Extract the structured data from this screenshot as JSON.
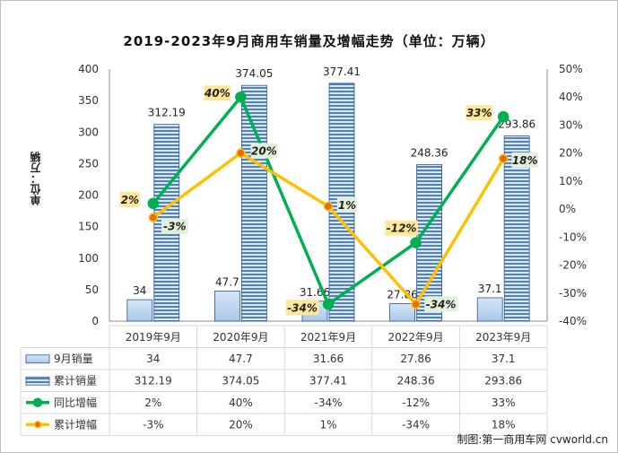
{
  "chart_data": {
    "type": "bar",
    "title": "2019-2023年9月商用车销量及增幅走势（单位：万辆）",
    "ylabel": "单位：万辆",
    "categories": [
      "2019年9月",
      "2020年9月",
      "2021年9月",
      "2022年9月",
      "2023年9月"
    ],
    "ylim": [
      0,
      400
    ],
    "yticks": [
      "0",
      "50",
      "100",
      "150",
      "200",
      "250",
      "300",
      "350",
      "400"
    ],
    "y2lim": [
      -40,
      50
    ],
    "y2ticks": [
      "-40%",
      "-30%",
      "-20%",
      "-10%",
      "0%",
      "10%",
      "20%",
      "30%",
      "40%",
      "50%"
    ],
    "series": [
      {
        "name": "9月销量",
        "kind": "bar",
        "axis": "left",
        "color": "#bdd7ee",
        "values": [
          34,
          47.7,
          31.66,
          27.86,
          37.1
        ],
        "labels": [
          "34",
          "47.7",
          "31.66",
          "27.86",
          "37.1"
        ]
      },
      {
        "name": "累计销量",
        "kind": "bar",
        "axis": "left",
        "color": "#4f81bd",
        "values": [
          312.19,
          374.05,
          377.41,
          248.36,
          293.86
        ],
        "labels": [
          "312.19",
          "374.05",
          "377.41",
          "248.36",
          "293.86"
        ]
      },
      {
        "name": "同比增幅",
        "kind": "line",
        "axis": "right",
        "color": "#00b050",
        "values": [
          2,
          40,
          -34,
          -12,
          33
        ],
        "labels": [
          "2%",
          "40%",
          "-34%",
          "-12%",
          "33%"
        ]
      },
      {
        "name": "累计增幅",
        "kind": "line",
        "axis": "right",
        "color": "#ffc000",
        "values": [
          -3,
          20,
          1,
          -34,
          18
        ],
        "labels": [
          "-3%",
          "20%",
          "1%",
          "-34%",
          "18%"
        ]
      }
    ],
    "grid": false,
    "legend": "data-table"
  },
  "source": "制图:第一商用车网 cvworld.cn"
}
